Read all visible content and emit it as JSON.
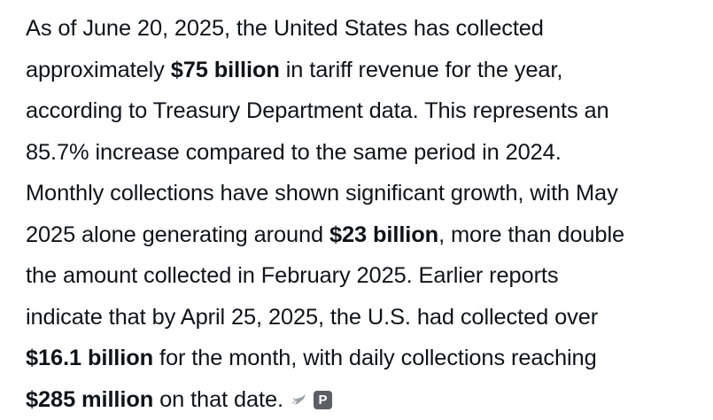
{
  "answer": {
    "l1": "As of June 20, 2025, the United States has collected",
    "l2_pre": "approximately ",
    "l2_bold": "$75 billion",
    "l2_post": " in tariff revenue for the year,",
    "l3": "according to Treasury Department data. This represents an",
    "l4": "85.7% increase compared to the same period in 2024.",
    "l5": "Monthly collections have shown significant growth, with May",
    "l6_pre": "2025 alone generating around ",
    "l6_bold": "$23 billion",
    "l6_post": ", more than double",
    "l7": "the amount collected in February 2025. Earlier reports",
    "l8": "indicate that by April 25, 2025, the U.S. had collected over",
    "l9_bold": "$16.1 billion",
    "l9_post": " for the month, with daily collections reaching",
    "l10_bold": "$285 million",
    "l10_post": " on that date."
  },
  "sources": {
    "first_icon": "bird-icon",
    "second_label": "P"
  }
}
